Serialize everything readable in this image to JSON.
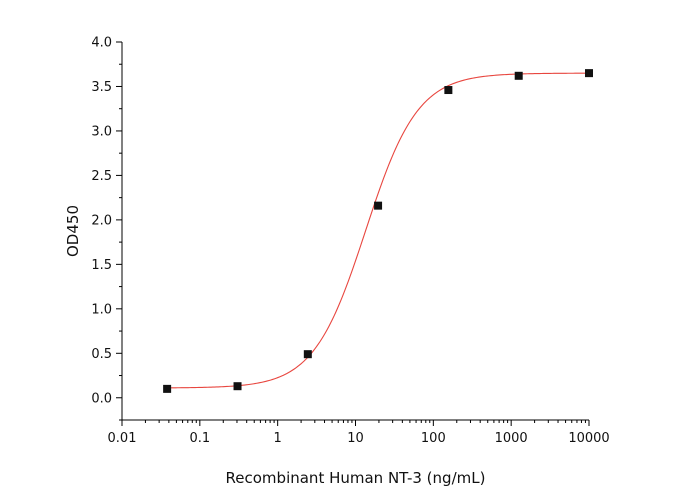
{
  "chart_data": {
    "type": "scatter",
    "xlabel": "Recombinant Human NT-3 (ng/mL)",
    "ylabel": "OD450",
    "xscale": "log",
    "xlim": [
      0.01,
      10000
    ],
    "ylim": [
      -0.25,
      4.0
    ],
    "x_ticks": [
      0.01,
      0.1,
      1,
      10,
      100,
      1000,
      10000
    ],
    "x_tick_labels": [
      "0.01",
      "0.1",
      "1",
      "10",
      "100",
      "1000",
      "10000"
    ],
    "y_ticks": [
      0.0,
      0.5,
      1.0,
      1.5,
      2.0,
      2.5,
      3.0,
      3.5,
      4.0
    ],
    "y_tick_labels": [
      "0.0",
      "0.5",
      "1.0",
      "1.5",
      "2.0",
      "2.5",
      "3.0",
      "3.5",
      "4.0"
    ],
    "grid": false,
    "legend": "none",
    "series": [
      {
        "x": [
          0.038,
          0.305,
          2.44,
          19.5,
          156,
          1250,
          10000
        ],
        "y": [
          0.1,
          0.13,
          0.49,
          2.16,
          3.46,
          3.62,
          3.65
        ],
        "marker": "square",
        "color": "#111111"
      }
    ],
    "fit": {
      "type": "4PL",
      "bottom": 0.11,
      "top": 3.65,
      "ec50": 13.5,
      "hill": 1.3,
      "color": "#e8463f"
    },
    "axis_color": "#000000"
  }
}
